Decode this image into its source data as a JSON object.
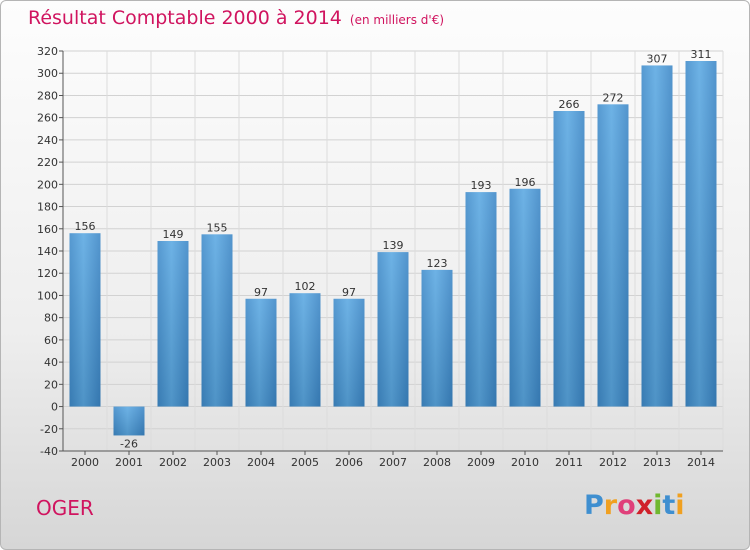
{
  "chart_data": {
    "type": "bar",
    "title": "Résultat Comptable 2000 à 2014",
    "unit_label": "(en milliers d'€)",
    "categories": [
      "2000",
      "2001",
      "2002",
      "2003",
      "2004",
      "2005",
      "2006",
      "2007",
      "2008",
      "2009",
      "2010",
      "2011",
      "2012",
      "2013",
      "2014"
    ],
    "values": [
      156,
      -26,
      149,
      155,
      97,
      102,
      97,
      139,
      123,
      193,
      196,
      266,
      272,
      307,
      311
    ],
    "ylim": [
      -40,
      320
    ],
    "yticks": [
      -40,
      -20,
      0,
      20,
      40,
      60,
      80,
      100,
      120,
      140,
      160,
      180,
      200,
      220,
      240,
      260,
      280,
      300,
      320
    ],
    "xlabel": "",
    "ylabel": "",
    "grid": true,
    "bar_color": "#4f9bd6",
    "title_color": "#d0145f"
  },
  "commune": "OGER",
  "logo": {
    "letters": [
      "P",
      "r",
      "o",
      "x",
      "i",
      "t",
      "i"
    ],
    "colors": [
      "#3f8fd0",
      "#f0a020",
      "#e0407a",
      "#d0202a",
      "#70b830",
      "#3f8fd0",
      "#f0a020"
    ]
  }
}
